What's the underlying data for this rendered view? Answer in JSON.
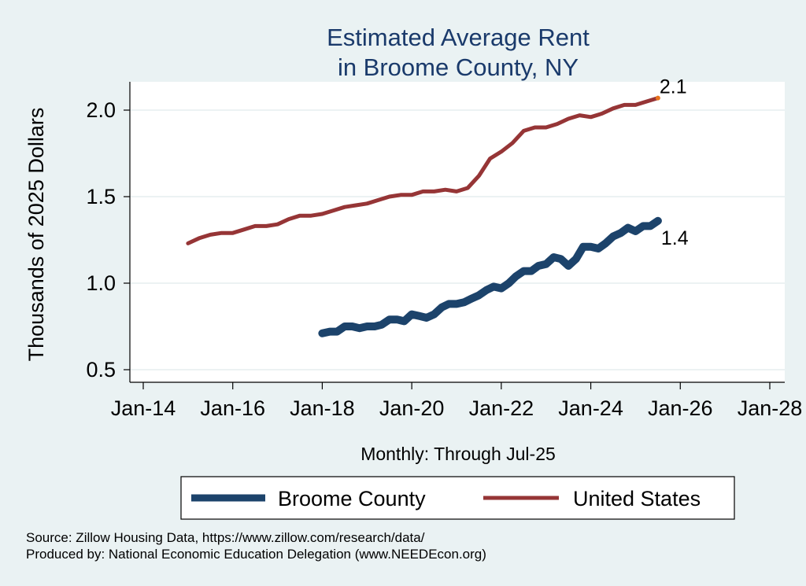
{
  "chart_data": {
    "type": "line",
    "title": [
      "Estimated Average Rent",
      "in Broome County, NY"
    ],
    "ylabel": "Thousands of 2025 Dollars",
    "xlabel": "Monthly: Through Jul-25",
    "ylim": [
      0.5,
      2.15
    ],
    "yticks": [
      0.5,
      1.0,
      1.5,
      2.0
    ],
    "ytick_labels": [
      "0.5",
      "1.0",
      "1.5",
      "2.0"
    ],
    "xlim": [
      2013.9,
      2028.0
    ],
    "xticks": [
      2014,
      2016,
      2018,
      2020,
      2022,
      2024,
      2026,
      2028
    ],
    "xtick_labels": [
      "Jan-14",
      "Jan-16",
      "Jan-18",
      "Jan-20",
      "Jan-22",
      "Jan-24",
      "Jan-26",
      "Jan-28"
    ],
    "grid": true,
    "series": [
      {
        "name": "Broome County",
        "color": "#1c436b",
        "end_label": "1.4",
        "points": [
          [
            2018.0,
            0.71
          ],
          [
            2018.17,
            0.72
          ],
          [
            2018.33,
            0.72
          ],
          [
            2018.5,
            0.75
          ],
          [
            2018.67,
            0.75
          ],
          [
            2018.83,
            0.74
          ],
          [
            2019.0,
            0.75
          ],
          [
            2019.17,
            0.75
          ],
          [
            2019.33,
            0.76
          ],
          [
            2019.5,
            0.79
          ],
          [
            2019.67,
            0.79
          ],
          [
            2019.83,
            0.78
          ],
          [
            2020.0,
            0.82
          ],
          [
            2020.17,
            0.81
          ],
          [
            2020.33,
            0.8
          ],
          [
            2020.5,
            0.82
          ],
          [
            2020.67,
            0.86
          ],
          [
            2020.83,
            0.88
          ],
          [
            2021.0,
            0.88
          ],
          [
            2021.17,
            0.89
          ],
          [
            2021.33,
            0.91
          ],
          [
            2021.5,
            0.93
          ],
          [
            2021.67,
            0.96
          ],
          [
            2021.83,
            0.98
          ],
          [
            2022.0,
            0.97
          ],
          [
            2022.17,
            1.0
          ],
          [
            2022.33,
            1.04
          ],
          [
            2022.5,
            1.07
          ],
          [
            2022.67,
            1.07
          ],
          [
            2022.83,
            1.1
          ],
          [
            2023.0,
            1.11
          ],
          [
            2023.17,
            1.15
          ],
          [
            2023.33,
            1.14
          ],
          [
            2023.5,
            1.1
          ],
          [
            2023.67,
            1.14
          ],
          [
            2023.83,
            1.21
          ],
          [
            2024.0,
            1.21
          ],
          [
            2024.17,
            1.2
          ],
          [
            2024.33,
            1.23
          ],
          [
            2024.5,
            1.27
          ],
          [
            2024.67,
            1.29
          ],
          [
            2024.83,
            1.32
          ],
          [
            2025.0,
            1.3
          ],
          [
            2025.17,
            1.33
          ],
          [
            2025.33,
            1.33
          ],
          [
            2025.5,
            1.36
          ]
        ]
      },
      {
        "name": "United States",
        "color": "#963536",
        "end_label": "2.1",
        "points": [
          [
            2015.0,
            1.23
          ],
          [
            2015.25,
            1.26
          ],
          [
            2015.5,
            1.28
          ],
          [
            2015.75,
            1.29
          ],
          [
            2016.0,
            1.29
          ],
          [
            2016.25,
            1.31
          ],
          [
            2016.5,
            1.33
          ],
          [
            2016.75,
            1.33
          ],
          [
            2017.0,
            1.34
          ],
          [
            2017.25,
            1.37
          ],
          [
            2017.5,
            1.39
          ],
          [
            2017.75,
            1.39
          ],
          [
            2018.0,
            1.4
          ],
          [
            2018.25,
            1.42
          ],
          [
            2018.5,
            1.44
          ],
          [
            2018.75,
            1.45
          ],
          [
            2019.0,
            1.46
          ],
          [
            2019.25,
            1.48
          ],
          [
            2019.5,
            1.5
          ],
          [
            2019.75,
            1.51
          ],
          [
            2020.0,
            1.51
          ],
          [
            2020.25,
            1.53
          ],
          [
            2020.5,
            1.53
          ],
          [
            2020.75,
            1.54
          ],
          [
            2021.0,
            1.53
          ],
          [
            2021.25,
            1.55
          ],
          [
            2021.5,
            1.62
          ],
          [
            2021.75,
            1.72
          ],
          [
            2022.0,
            1.76
          ],
          [
            2022.25,
            1.81
          ],
          [
            2022.5,
            1.88
          ],
          [
            2022.75,
            1.9
          ],
          [
            2023.0,
            1.9
          ],
          [
            2023.25,
            1.92
          ],
          [
            2023.5,
            1.95
          ],
          [
            2023.75,
            1.97
          ],
          [
            2024.0,
            1.96
          ],
          [
            2024.25,
            1.98
          ],
          [
            2024.5,
            2.01
          ],
          [
            2024.75,
            2.03
          ],
          [
            2025.0,
            2.03
          ],
          [
            2025.25,
            2.05
          ],
          [
            2025.5,
            2.07
          ]
        ]
      }
    ],
    "legend": [
      "Broome County",
      "United States"
    ],
    "legend_position": "bottom",
    "end_marker_color": "#e8731c"
  },
  "source": {
    "line1": "Source: Zillow Housing Data, https://www.zillow.com/research/data/",
    "line2": "Produced by: National Economic Education Delegation (www.NEEDEcon.org)"
  }
}
